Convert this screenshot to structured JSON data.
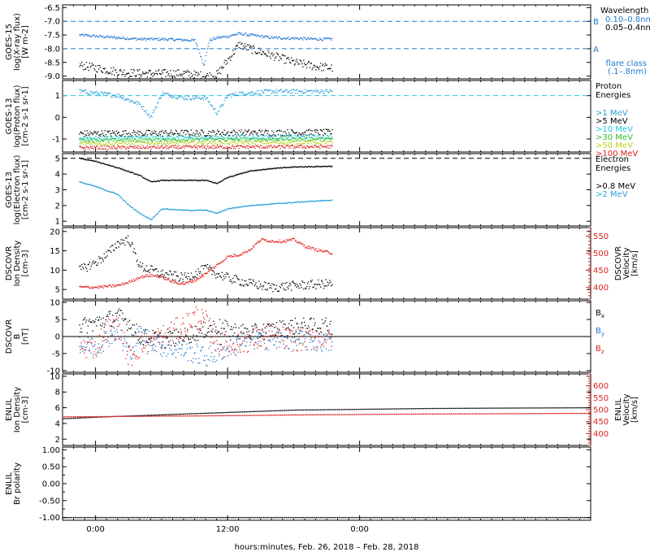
{
  "colors": {
    "black": "#000000",
    "blue": "#1f78d1",
    "lightblue": "#2aa0d8",
    "cyan": "#20c8e0",
    "green": "#30c030",
    "lime": "#b8d020",
    "orange": "#f0a020",
    "red": "#e02020"
  },
  "x_axis": {
    "label": "hours:minutes, Feb. 26, 2018 – Feb. 28, 2018",
    "range_hours": [
      -3,
      45
    ],
    "ticks": [
      {
        "hours": 0,
        "label": "0:00"
      },
      {
        "hours": 12,
        "label": "12:00"
      },
      {
        "hours": 24,
        "label": "0:00"
      }
    ]
  },
  "chart_data": [
    {
      "type": "scatter",
      "id": "goes15",
      "ylabel": "GOES-15 log(X-ray flux) [W m-2]",
      "ylabel_lines": [
        "GOES-15",
        "log(X-ray flux)",
        "[W m-2]"
      ],
      "ylim": [
        -9.1,
        -6.4
      ],
      "yticks": [
        -6.5,
        -7.0,
        -7.5,
        -8.0,
        -8.5,
        -9.0
      ],
      "ytick_labels": [
        "-6.5",
        "-7.0",
        "-7.5",
        "-8.0",
        "-8.5",
        "-9.0"
      ],
      "hlines": [
        {
          "y": -7.0,
          "label": "B",
          "color": "blue",
          "dashed": true
        },
        {
          "y": -8.0,
          "label": "A",
          "color": "blue",
          "dashed": true
        }
      ],
      "legend_title": "Wavelength",
      "legend": [
        {
          "label": "0.10–0.8nm",
          "color": "blue"
        },
        {
          "label": "0.05–0.4nm",
          "color": "black"
        }
      ],
      "note_lines": [
        "flare class",
        "(.1–.8nm)"
      ],
      "series": [
        {
          "name": "0.10–0.8nm",
          "color": "blue",
          "x": [
            -1.5,
            2,
            4,
            6,
            8,
            9,
            9.3,
            9.8,
            10.3,
            11,
            12,
            13,
            14,
            16,
            18,
            20,
            21.5
          ],
          "y": [
            -7.5,
            -7.6,
            -7.65,
            -7.65,
            -7.68,
            -7.7,
            -8.0,
            -8.6,
            -7.7,
            -7.6,
            -7.55,
            -7.45,
            -7.5,
            -7.6,
            -7.62,
            -7.65,
            -7.65
          ],
          "noise": 0.05
        },
        {
          "name": "0.05–0.4nm",
          "color": "black",
          "x": [
            -1.5,
            0,
            2,
            4,
            6,
            8,
            9,
            10,
            11,
            12,
            13,
            14,
            16,
            18,
            20,
            21.5
          ],
          "y": [
            -8.6,
            -8.7,
            -8.85,
            -8.9,
            -8.9,
            -8.9,
            -8.95,
            -9.0,
            -8.95,
            -8.4,
            -7.85,
            -8.0,
            -8.25,
            -8.5,
            -8.65,
            -8.7
          ],
          "noise": 0.15
        }
      ]
    },
    {
      "type": "scatter",
      "id": "goes13p",
      "ylabel": "GOES-13 log(Proton flux) [cm-2 s-1 sr-1]",
      "ylabel_lines": [
        "GOES-13",
        "log(Proton flux)",
        "[cm-2 s-1 sr-1]"
      ],
      "ylim": [
        -1.6,
        1.7
      ],
      "yticks": [
        1,
        0,
        -1
      ],
      "ytick_labels": [
        "1",
        "0",
        "-1"
      ],
      "hlines": [
        {
          "y": 1.0,
          "label": "",
          "color": "cyan",
          "dashed": true
        }
      ],
      "legend_title": "Proton Energies",
      "legend_title_lines": [
        "Proton",
        "Energies"
      ],
      "legend": [
        {
          "label": ">1 MeV",
          "color": "lightblue"
        },
        {
          "label": ">5 MeV",
          "color": "black"
        },
        {
          "label": ">10 MeV",
          "color": "cyan"
        },
        {
          "label": ">30 MeV",
          "color": "green"
        },
        {
          "label": ">50 MeV",
          "color": "lime"
        },
        {
          "label": ">100 MeV",
          "color": "red"
        }
      ],
      "series": [
        {
          "name": ">1 MeV",
          "color": "lightblue",
          "x": [
            -1.5,
            2,
            4,
            5,
            6,
            8,
            10,
            11,
            12,
            13,
            16,
            18,
            21.5
          ],
          "y": [
            1.2,
            1.0,
            0.6,
            0.0,
            1.1,
            0.9,
            0.9,
            0.2,
            1.0,
            1.1,
            1.2,
            1.2,
            1.2
          ],
          "noise": 0.1
        },
        {
          "name": ">5 MeV",
          "color": "black",
          "x": [
            -1.5,
            21.5
          ],
          "y": [
            -0.75,
            -0.7
          ],
          "noise": 0.15
        },
        {
          "name": ">10 MeV",
          "color": "cyan",
          "x": [
            -1.5,
            21.5
          ],
          "y": [
            -0.95,
            -0.9
          ],
          "noise": 0.1
        },
        {
          "name": ">30 MeV",
          "color": "green",
          "x": [
            -1.5,
            21.5
          ],
          "y": [
            -1.05,
            -1.0
          ],
          "noise": 0.08
        },
        {
          "name": ">50 MeV",
          "color": "lime",
          "x": [
            -1.5,
            21.5
          ],
          "y": [
            -1.2,
            -1.15
          ],
          "noise": 0.08
        },
        {
          "name": ">100 MeV",
          "color": "red",
          "x": [
            -1.5,
            21.5
          ],
          "y": [
            -1.4,
            -1.35
          ],
          "noise": 0.08
        }
      ]
    },
    {
      "type": "scatter",
      "id": "goes13e",
      "ylabel": "GOES-13 log(Electron flux) [cm-2 s-1 sr-1]",
      "ylabel_lines": [
        "GOES-13",
        "log(Electron flux)",
        "[cm-2 s-1 sr-1]"
      ],
      "ylim": [
        0.7,
        5.3
      ],
      "yticks": [
        5,
        4,
        3,
        2,
        1
      ],
      "ytick_labels": [
        "5",
        "4",
        "3",
        "2",
        "1"
      ],
      "hlines": [
        {
          "y": 5.0,
          "label": "",
          "color": "black",
          "dashed": true
        }
      ],
      "legend_title": "Electron Energies",
      "legend_title_lines": [
        "Electron",
        "Energies"
      ],
      "legend": [
        {
          "label": ">0.8 MeV",
          "color": "black"
        },
        {
          "label": ">2 MeV",
          "color": "lightblue"
        }
      ],
      "series": [
        {
          "name": ">0.8 MeV",
          "color": "black",
          "x": [
            -1.5,
            0,
            2,
            4,
            5,
            6,
            8,
            10,
            11,
            12,
            14,
            16,
            18,
            21.5
          ],
          "y": [
            5.0,
            4.8,
            4.4,
            3.9,
            3.5,
            3.6,
            3.6,
            3.6,
            3.4,
            3.8,
            4.2,
            4.35,
            4.45,
            4.5
          ],
          "noise": 0.03
        },
        {
          "name": ">2 MeV",
          "color": "lightblue",
          "x": [
            -1.5,
            0,
            2,
            3,
            4,
            5,
            6,
            8,
            10,
            11,
            12,
            14,
            18,
            21.5
          ],
          "y": [
            3.5,
            3.2,
            2.7,
            2.0,
            1.5,
            1.1,
            1.8,
            1.7,
            1.7,
            1.5,
            1.8,
            2.0,
            2.2,
            2.35
          ],
          "noise": 0.03
        }
      ]
    },
    {
      "type": "scatter",
      "id": "dscovr_density",
      "ylabel": "DSCOVR Ion Density [cm-3]",
      "ylabel_lines": [
        "DSCOVR",
        "Ion Density",
        "[cm-3]"
      ],
      "ylim": [
        2.5,
        21
      ],
      "yticks": [
        20,
        15,
        10,
        5
      ],
      "ytick_labels": [
        "20",
        "15",
        "10",
        "5"
      ],
      "right_axis": {
        "ylabel": "DSCOVR Velocity [km/s]",
        "ylabel_lines": [
          "DSCOVR",
          "Velocity",
          "[km/s]"
        ],
        "ylim": [
          365,
          575
        ],
        "yticks": [
          550,
          500,
          450,
          400
        ],
        "ytick_labels": [
          "550",
          "500",
          "450",
          "400"
        ],
        "color": "red"
      },
      "series": [
        {
          "name": "Ion Density",
          "color": "black",
          "x": [
            -1.5,
            0,
            1,
            2,
            3,
            4,
            5,
            6,
            7,
            8,
            9,
            10,
            11,
            12,
            14,
            16,
            18,
            21.5
          ],
          "y": [
            10,
            12,
            14,
            17,
            18,
            11,
            10,
            9,
            8.5,
            8,
            9,
            10.5,
            9,
            8,
            6.5,
            5.5,
            6,
            6.5
          ],
          "noise": 1.2
        },
        {
          "name": "Velocity",
          "color": "red",
          "axis": "right",
          "x": [
            -1.5,
            0,
            2,
            3,
            4,
            5,
            6,
            7,
            8,
            9,
            10,
            11,
            12,
            13,
            14,
            15,
            16,
            17,
            18,
            19,
            20,
            21.5
          ],
          "y": [
            400,
            400,
            405,
            415,
            430,
            435,
            430,
            415,
            410,
            420,
            440,
            465,
            490,
            495,
            510,
            540,
            535,
            535,
            540,
            520,
            510,
            500
          ],
          "noise": 4
        }
      ]
    },
    {
      "type": "scatter",
      "id": "dscovr_b",
      "ylabel": "DSCOVR B [nT]",
      "ylabel_lines": [
        "DSCOVR",
        "B",
        "[nT]"
      ],
      "ylim": [
        -10.5,
        10.5
      ],
      "yticks": [
        10,
        5,
        0,
        -5,
        -10
      ],
      "ytick_labels": [
        "10",
        "5",
        "0",
        "-5",
        "-10"
      ],
      "zero_line": true,
      "legend": [
        {
          "label": "Bx",
          "color": "black",
          "base": "B",
          "sub": "x"
        },
        {
          "label": "By",
          "color": "blue",
          "base": "B",
          "sub": "y"
        },
        {
          "label": "Bz",
          "color": "red",
          "base": "B",
          "sub": "z"
        }
      ],
      "series": [
        {
          "name": "Bx",
          "color": "black",
          "x": [
            -1.5,
            0,
            2,
            3,
            4,
            6,
            8,
            10,
            11,
            12,
            14,
            16,
            18,
            21.5
          ],
          "y": [
            3,
            4,
            6,
            4,
            0,
            -1,
            0,
            2,
            3,
            2,
            1,
            2,
            3,
            3
          ],
          "noise": 2.5
        },
        {
          "name": "By",
          "color": "blue",
          "x": [
            -1.5,
            0,
            2,
            3,
            4,
            6,
            8,
            10,
            11,
            12,
            14,
            16,
            18,
            21.5
          ],
          "y": [
            -3,
            -3,
            2,
            -5,
            1,
            -3,
            -4,
            -6,
            -5,
            -3,
            -1,
            -1,
            -1,
            -2
          ],
          "noise": 3
        },
        {
          "name": "Bz",
          "color": "red",
          "x": [
            -1.5,
            0,
            1,
            2,
            3,
            4,
            6,
            8,
            9,
            10,
            11,
            12,
            14,
            16,
            18,
            21.5
          ],
          "y": [
            -3,
            -3,
            2,
            3,
            -6,
            -3,
            0,
            3,
            6,
            4,
            -2,
            -3,
            -1,
            0,
            -1,
            0
          ],
          "noise": 3.5
        }
      ]
    },
    {
      "type": "scatter",
      "id": "enlil_density",
      "ylabel": "ENLIL Ion Density [cm-3]",
      "ylabel_lines": [
        "ENLIL",
        "Ion Density",
        "[cm-3]"
      ],
      "ylim": [
        1.2,
        10.3
      ],
      "yticks": [
        10,
        8,
        6,
        4,
        2
      ],
      "ytick_labels": [
        "10",
        "8",
        "6",
        "4",
        "2"
      ],
      "right_axis": {
        "ylabel": "ENLIL Velocity [km/s]",
        "ylabel_lines": [
          "ENLIL",
          "Velocity",
          "[km/s]"
        ],
        "ylim": [
          350,
          650
        ],
        "yticks": [
          600,
          550,
          500,
          450,
          400
        ],
        "ytick_labels": [
          "600",
          "550",
          "500",
          "450",
          "400"
        ],
        "color": "red"
      },
      "series": [
        {
          "name": "Ion Density",
          "color": "black",
          "x": [
            -3,
            0,
            6,
            12,
            18,
            24,
            30,
            36,
            45
          ],
          "y": [
            4.6,
            4.8,
            5.1,
            5.4,
            5.7,
            5.8,
            5.9,
            5.95,
            6.0
          ],
          "noise": 0
        },
        {
          "name": "Velocity",
          "color": "red",
          "axis": "right",
          "x": [
            -3,
            6,
            12,
            18,
            24,
            30,
            36,
            45
          ],
          "y": [
            470,
            473,
            475,
            478,
            480,
            482,
            483,
            485
          ],
          "noise": 0
        }
      ]
    },
    {
      "type": "scatter",
      "id": "enlil_polarity",
      "ylabel": "ENLIL Br polarity",
      "ylabel_lines": [
        "ENLIL",
        "Br polarity"
      ],
      "ylim": [
        -1.08,
        1.08
      ],
      "yticks": [
        1.0,
        0.5,
        0.0,
        -0.5,
        -1.0
      ],
      "ytick_labels": [
        "1.00",
        "0.50",
        "0.00",
        "-0.50",
        "-1.00"
      ],
      "ytick_labels_extra": [
        "0.75",
        "0.25",
        "-0.25",
        "-0.75"
      ],
      "yticks_extra": [
        0.75,
        0.25,
        -0.25,
        -0.75
      ],
      "series": [
        {
          "name": "Br polarity",
          "color": "black",
          "x": [
            -3,
            45
          ],
          "y": [
            -1.0,
            -1.0
          ],
          "noise": 0
        }
      ]
    }
  ]
}
